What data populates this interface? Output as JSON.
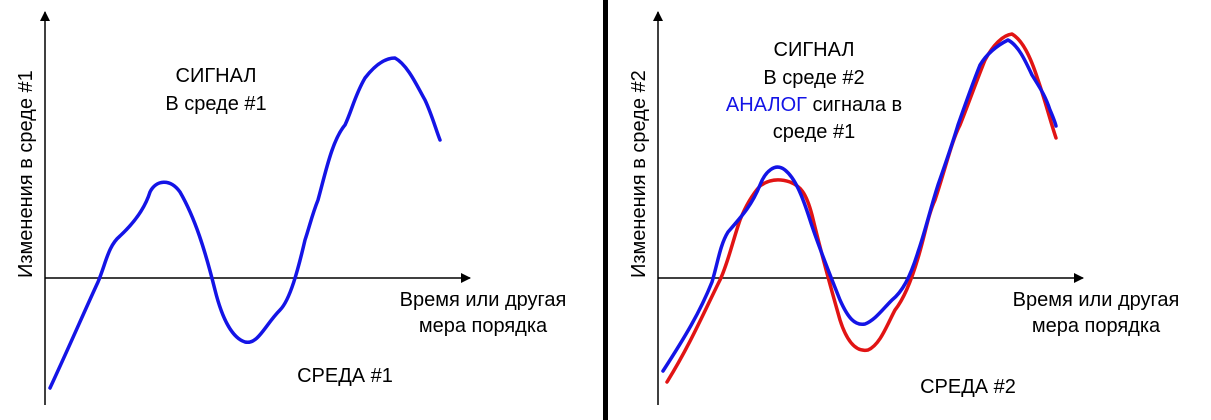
{
  "colors": {
    "blue": "#1414e6",
    "red": "#e11414",
    "axis": "#000000",
    "divider": "#000000"
  },
  "panels": [
    {
      "env_label": "СРЕДА #1",
      "y_axis_label": "Изменения в среде #1",
      "x_axis_label_line1": "Время или другая",
      "x_axis_label_line2": "мера порядка",
      "legend": {
        "signal_word": "СИГНАЛ",
        "signal_env": "В среде #1"
      }
    },
    {
      "env_label": "СРЕДА #2",
      "y_axis_label": "Изменения в среде #2",
      "x_axis_label_line1": "Время или другая",
      "x_axis_label_line2": "мера порядка",
      "legend": {
        "signal_word": "СИГНАЛ",
        "signal_env": "В среде #2",
        "analog_word": "АНАЛОГ",
        "analog_rest": " сигнала в",
        "analog_line3": "среде #1"
      }
    }
  ]
}
